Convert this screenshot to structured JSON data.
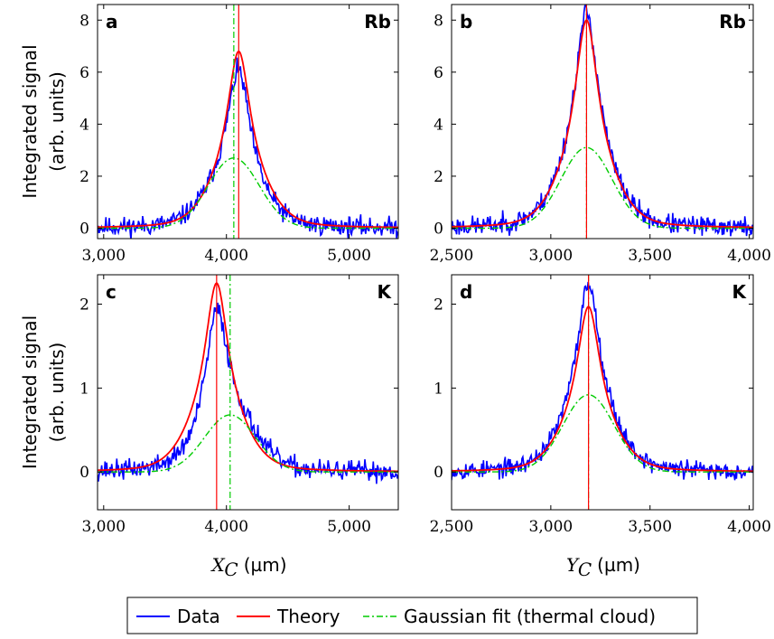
{
  "chart_data": [
    {
      "type": "line",
      "panel_label": "a",
      "species": "Rb",
      "ylabel": [
        "Integrated signal",
        "(arb. units)"
      ],
      "xlabel": "",
      "xlim": [
        2950,
        5400
      ],
      "ylim": [
        -0.4,
        8.6
      ],
      "xticks": [
        3000,
        4000,
        5000
      ],
      "xtick_labels": [
        "3,000",
        "4,000",
        "5,000"
      ],
      "yticks": [
        0,
        2,
        4,
        6,
        8
      ],
      "ytick_labels": [
        "0",
        "2",
        "4",
        "6",
        "8"
      ],
      "theory_peak": {
        "x": 4100,
        "y": 6.8
      },
      "data_peak": {
        "x": 4100,
        "y": 6.1
      },
      "gaussian_peak": {
        "x": 4060,
        "y": 2.7
      },
      "vline_theory_x": 4100,
      "vline_gaussian_x": 4060,
      "noise": 0.12,
      "seed": 11
    },
    {
      "type": "line",
      "panel_label": "b",
      "species": "Rb",
      "ylabel": [],
      "xlabel": "",
      "xlim": [
        2500,
        4020
      ],
      "ylim": [
        -0.4,
        8.6
      ],
      "xticks": [
        2500,
        3000,
        3500,
        4000
      ],
      "xtick_labels": [
        "2,500",
        "3,000",
        "3,500",
        "4,000"
      ],
      "yticks": [
        0,
        2,
        4,
        6,
        8
      ],
      "ytick_labels": [
        "0",
        "2",
        "4",
        "6",
        "8"
      ],
      "theory_peak": {
        "x": 3180,
        "y": 8.0
      },
      "data_peak": {
        "x": 3180,
        "y": 8.3
      },
      "gaussian_peak": {
        "x": 3180,
        "y": 3.1
      },
      "vline_theory_x": 3180,
      "vline_gaussian_x": 3180,
      "noise": 0.12,
      "seed": 23
    },
    {
      "type": "line",
      "panel_label": "c",
      "species": "K",
      "ylabel": [
        "Integrated signal",
        "(arb. units)"
      ],
      "xlabel": "X_C (µm)",
      "xlim": [
        2950,
        5400
      ],
      "ylim": [
        -0.45,
        2.35
      ],
      "xticks": [
        3000,
        4000,
        5000
      ],
      "xtick_labels": [
        "3,000",
        "4,000",
        "5,000"
      ],
      "yticks": [
        0,
        1,
        2
      ],
      "ytick_labels": [
        "0",
        "1",
        "2"
      ],
      "theory_peak": {
        "x": 3920,
        "y": 2.25
      },
      "data_peak": {
        "x": 3920,
        "y": 2.0
      },
      "gaussian_peak": {
        "x": 4030,
        "y": 0.68
      },
      "vline_theory_x": 3920,
      "vline_gaussian_x": 4030,
      "noise": 0.12,
      "seed": 37
    },
    {
      "type": "line",
      "panel_label": "d",
      "species": "K",
      "ylabel": [],
      "xlabel": "Y_C (µm)",
      "xlim": [
        2500,
        4020
      ],
      "ylim": [
        -0.45,
        2.35
      ],
      "xticks": [
        2500,
        3000,
        3500,
        4000
      ],
      "xtick_labels": [
        "2,500",
        "3,000",
        "3,500",
        "4,000"
      ],
      "yticks": [
        0,
        1,
        2
      ],
      "ytick_labels": [
        "0",
        "1",
        "2"
      ],
      "theory_peak": {
        "x": 3190,
        "y": 1.97
      },
      "data_peak": {
        "x": 3190,
        "y": 2.25
      },
      "gaussian_peak": {
        "x": 3190,
        "y": 0.92
      },
      "vline_theory_x": 3190,
      "vline_gaussian_x": 3190,
      "noise": 0.11,
      "seed": 53
    }
  ],
  "xlabels": {
    "left": {
      "var": "X",
      "sub": "C",
      "unit": "(µm)"
    },
    "right": {
      "var": "Y",
      "sub": "C",
      "unit": "(µm)"
    }
  },
  "legend": {
    "entries": [
      {
        "label": "Data",
        "color": "#0000ff",
        "style": "solid"
      },
      {
        "label": "Theory",
        "color": "#ff0000",
        "style": "solid"
      },
      {
        "label": "Gaussian fit (thermal cloud)",
        "color": "#00cc00",
        "style": "dashdot"
      }
    ]
  },
  "colors": {
    "data": "#0000ff",
    "theory": "#ff0000",
    "gaussian": "#00cc00",
    "axis": "#000000"
  }
}
